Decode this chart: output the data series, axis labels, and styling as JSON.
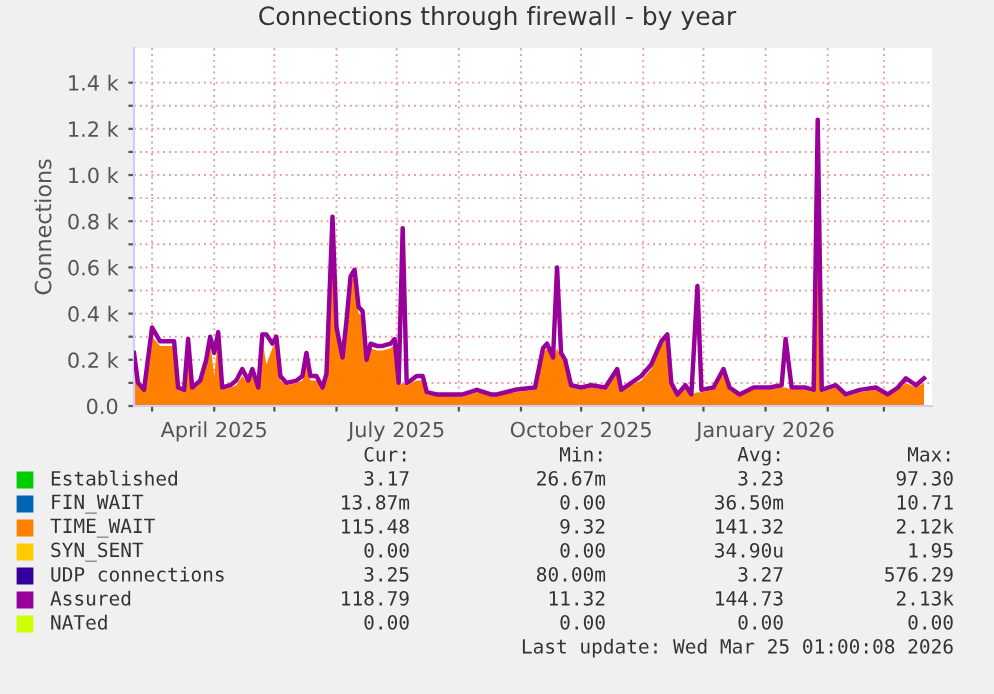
{
  "chart_data": {
    "type": "area",
    "title": "Connections through firewall - by year",
    "ylabel": "Connections",
    "x": [
      "2025-02-20",
      "2025-02-22",
      "2025-02-25",
      "2025-03-01",
      "2025-03-03",
      "2025-03-05",
      "2025-03-08",
      "2025-03-12",
      "2025-03-14",
      "2025-03-17",
      "2025-03-19",
      "2025-03-21",
      "2025-03-25",
      "2025-03-28",
      "2025-03-30",
      "2025-04-01",
      "2025-04-03",
      "2025-04-05",
      "2025-04-09",
      "2025-04-12",
      "2025-04-15",
      "2025-04-18",
      "2025-04-20",
      "2025-04-23",
      "2025-04-25",
      "2025-04-27",
      "2025-04-30",
      "2025-05-02",
      "2025-05-04",
      "2025-05-07",
      "2025-05-12",
      "2025-05-15",
      "2025-05-17",
      "2025-05-19",
      "2025-05-22",
      "2025-05-25",
      "2025-05-27",
      "2025-05-30",
      "2025-06-01",
      "2025-06-04",
      "2025-06-06",
      "2025-06-08",
      "2025-06-10",
      "2025-06-12",
      "2025-06-14",
      "2025-06-16",
      "2025-06-18",
      "2025-06-21",
      "2025-06-24",
      "2025-06-28",
      "2025-06-30",
      "2025-07-02",
      "2025-07-04",
      "2025-07-06",
      "2025-07-08",
      "2025-07-11",
      "2025-07-14",
      "2025-07-16",
      "2025-07-21",
      "2025-07-28",
      "2025-08-03",
      "2025-08-10",
      "2025-08-17",
      "2025-08-20",
      "2025-08-29",
      "2025-09-08",
      "2025-09-12",
      "2025-09-14",
      "2025-09-17",
      "2025-09-19",
      "2025-09-21",
      "2025-09-23",
      "2025-09-26",
      "2025-10-01",
      "2025-10-06",
      "2025-10-13",
      "2025-10-19",
      "2025-10-21",
      "2025-10-26",
      "2025-10-31",
      "2025-11-05",
      "2025-11-10",
      "2025-11-13",
      "2025-11-15",
      "2025-11-18",
      "2025-11-22",
      "2025-11-25",
      "2025-11-28",
      "2025-11-30",
      "2025-12-06",
      "2025-12-11",
      "2025-12-14",
      "2025-12-19",
      "2025-12-26",
      "2026-01-03",
      "2026-01-09",
      "2026-01-11",
      "2026-01-14",
      "2026-01-21",
      "2026-01-25",
      "2026-01-27",
      "2026-01-29",
      "2026-02-05",
      "2026-02-10",
      "2026-02-17",
      "2026-02-25",
      "2026-03-03",
      "2026-03-08",
      "2026-03-12",
      "2026-03-17",
      "2026-03-21"
    ],
    "series": [
      {
        "name": "Established",
        "color": "#00cc00",
        "type": "line",
        "values": [
          null,
          null,
          null,
          null,
          null,
          null,
          null,
          null,
          null,
          null,
          null,
          null,
          null,
          null,
          null,
          null,
          null,
          null,
          null,
          null,
          null,
          null,
          null,
          null,
          null,
          null,
          null,
          null,
          null,
          null,
          null,
          null,
          null,
          null,
          null,
          null,
          null,
          null,
          null,
          null,
          null,
          null,
          null,
          null,
          null,
          null,
          null,
          null,
          null,
          null,
          null,
          null,
          null,
          null,
          null,
          null,
          null,
          null,
          null,
          null,
          null,
          null,
          null,
          null,
          null,
          null,
          null,
          null,
          null,
          null,
          null,
          null,
          null,
          null,
          null,
          null,
          null,
          null,
          null,
          null,
          null,
          null,
          null,
          null,
          null,
          null,
          null,
          null,
          null,
          null,
          null,
          null,
          null,
          null,
          null,
          null,
          null,
          null,
          null,
          null,
          null,
          null,
          null,
          null,
          null,
          null,
          null,
          null,
          null,
          null,
          null
        ]
      },
      {
        "name": "FIN_WAIT",
        "color": "#0066b3",
        "type": "line",
        "values": [
          null,
          null,
          null,
          null,
          null,
          null,
          null,
          null,
          null,
          null,
          null,
          null,
          null,
          null,
          null,
          null,
          null,
          null,
          null,
          null,
          null,
          null,
          null,
          null,
          null,
          null,
          null,
          null,
          null,
          null,
          null,
          null,
          null,
          null,
          null,
          null,
          null,
          null,
          null,
          null,
          null,
          null,
          null,
          null,
          null,
          null,
          null,
          null,
          null,
          null,
          null,
          null,
          null,
          null,
          null,
          null,
          null,
          null,
          null,
          null,
          null,
          null,
          null,
          null,
          null,
          null,
          null,
          null,
          null,
          null,
          null,
          null,
          null,
          null,
          null,
          null,
          null,
          null,
          null,
          null,
          null,
          null,
          null,
          null,
          null,
          null,
          null,
          null,
          null,
          null,
          null,
          null,
          null,
          null,
          null,
          null,
          null,
          null,
          null,
          null,
          null,
          null,
          null,
          null,
          null,
          null,
          null,
          null,
          null,
          null,
          null
        ]
      },
      {
        "name": "TIME_WAIT",
        "color": "#ff8000",
        "values": [
          210,
          90,
          60,
          300,
          280,
          260,
          260,
          260,
          70,
          60,
          260,
          70,
          100,
          180,
          280,
          130,
          300,
          70,
          80,
          90,
          130,
          100,
          130,
          70,
          290,
          180,
          250,
          280,
          110,
          90,
          100,
          110,
          200,
          110,
          110,
          70,
          130,
          800,
          320,
          200,
          350,
          530,
          570,
          400,
          390,
          190,
          250,
          240,
          240,
          250,
          270,
          90,
          100,
          90,
          100,
          110,
          110,
          50,
          50,
          50,
          40,
          60,
          50,
          50,
          60,
          70,
          230,
          250,
          200,
          250,
          210,
          180,
          80,
          70,
          80,
          70,
          150,
          60,
          90,
          110,
          160,
          270,
          300,
          90,
          50,
          80,
          50,
          60,
          60,
          70,
          140,
          70,
          50,
          70,
          70,
          80,
          80,
          70,
          70,
          60,
          1200,
          60,
          80,
          40,
          60,
          70,
          40,
          70,
          100,
          80,
          100
        ]
      },
      {
        "name": "SYN_SENT",
        "color": "#ffcc00",
        "type": "line",
        "values": [
          null,
          null,
          null,
          null,
          null,
          null,
          null,
          null,
          null,
          null,
          null,
          null,
          null,
          null,
          null,
          null,
          null,
          null,
          null,
          null,
          null,
          null,
          null,
          null,
          null,
          null,
          null,
          null,
          null,
          null,
          null,
          null,
          null,
          null,
          null,
          null,
          null,
          null,
          null,
          null,
          null,
          null,
          null,
          null,
          null,
          null,
          null,
          null,
          null,
          null,
          null,
          null,
          null,
          null,
          null,
          null,
          null,
          null,
          null,
          null,
          null,
          null,
          null,
          null,
          null,
          null,
          null,
          null,
          null,
          null,
          null,
          null,
          null,
          null,
          null,
          null,
          null,
          null,
          null,
          null,
          null,
          null,
          null,
          null,
          null,
          null,
          null,
          null,
          null,
          null,
          null,
          null,
          null,
          null,
          null,
          null,
          null,
          null,
          null,
          null,
          null,
          null,
          null,
          null,
          null,
          null,
          null,
          null,
          null,
          null,
          null
        ]
      },
      {
        "name": "UDP connections",
        "color": "#330099",
        "type": "line",
        "values": [
          null,
          null,
          null,
          null,
          null,
          null,
          null,
          null,
          null,
          null,
          null,
          null,
          null,
          null,
          null,
          null,
          null,
          null,
          null,
          null,
          null,
          null,
          null,
          null,
          null,
          null,
          null,
          null,
          null,
          null,
          null,
          null,
          null,
          null,
          null,
          null,
          null,
          null,
          null,
          null,
          null,
          null,
          null,
          null,
          null,
          null,
          null,
          null,
          null,
          null,
          null,
          null,
          null,
          null,
          null,
          null,
          null,
          null,
          null,
          null,
          null,
          null,
          null,
          null,
          null,
          null,
          null,
          null,
          null,
          null,
          null,
          null,
          null,
          null,
          null,
          null,
          null,
          null,
          null,
          null,
          null,
          null,
          null,
          null,
          null,
          null,
          null,
          null,
          null,
          null,
          null,
          null,
          null,
          null,
          null,
          null,
          null,
          null,
          null,
          null,
          null,
          null,
          null,
          null,
          null,
          null,
          null,
          null,
          null,
          null,
          null
        ]
      },
      {
        "name": "Assured",
        "color": "#990099",
        "type": "line",
        "values": [
          230,
          100,
          70,
          340,
          310,
          280,
          280,
          280,
          80,
          70,
          290,
          80,
          110,
          200,
          300,
          230,
          320,
          80,
          90,
          110,
          160,
          110,
          160,
          80,
          310,
          310,
          270,
          300,
          130,
          100,
          110,
          130,
          230,
          130,
          130,
          80,
          140,
          820,
          340,
          210,
          370,
          560,
          590,
          430,
          410,
          200,
          270,
          260,
          260,
          270,
          290,
          100,
          770,
          100,
          110,
          130,
          130,
          60,
          50,
          50,
          50,
          70,
          50,
          50,
          70,
          80,
          250,
          270,
          210,
          600,
          230,
          200,
          90,
          80,
          90,
          80,
          160,
          70,
          100,
          130,
          180,
          280,
          310,
          100,
          50,
          90,
          50,
          520,
          70,
          80,
          160,
          80,
          50,
          80,
          80,
          90,
          290,
          80,
          80,
          70,
          1240,
          70,
          90,
          50,
          70,
          80,
          50,
          80,
          120,
          90,
          120
        ]
      },
      {
        "name": "NATed",
        "color": "#ccff00",
        "type": "line",
        "values": [
          null,
          null,
          null,
          null,
          null,
          null,
          null,
          null,
          null,
          null,
          null,
          null,
          null,
          null,
          null,
          null,
          null,
          null,
          null,
          null,
          null,
          null,
          null,
          null,
          null,
          null,
          null,
          null,
          null,
          null,
          null,
          null,
          null,
          null,
          null,
          null,
          null,
          null,
          null,
          null,
          null,
          null,
          null,
          null,
          null,
          null,
          null,
          null,
          null,
          null,
          null,
          null,
          null,
          null,
          null,
          null,
          null,
          null,
          null,
          null,
          null,
          null,
          null,
          null,
          null,
          null,
          null,
          null,
          null,
          null,
          null,
          null,
          null,
          null,
          null,
          null,
          null,
          null,
          null,
          null,
          null,
          null,
          null,
          null,
          null,
          null,
          null,
          null,
          null,
          null,
          null,
          null,
          null,
          null,
          null,
          null,
          null,
          null,
          null,
          null,
          null,
          null,
          null,
          null,
          null,
          null,
          null,
          null,
          null,
          null,
          null
        ]
      }
    ],
    "xlim": [
      "2025-02-20",
      "2026-03-25"
    ],
    "xticks": [
      {
        "value": "2025-03-01",
        "label": null
      },
      {
        "value": "2025-04-01",
        "label": "April 2025"
      },
      {
        "value": "2025-05-01",
        "label": null
      },
      {
        "value": "2025-06-01",
        "label": null
      },
      {
        "value": "2025-07-01",
        "label": "July 2025"
      },
      {
        "value": "2025-08-01",
        "label": null
      },
      {
        "value": "2025-09-01",
        "label": null
      },
      {
        "value": "2025-10-01",
        "label": "October 2025"
      },
      {
        "value": "2025-11-01",
        "label": null
      },
      {
        "value": "2025-12-01",
        "label": null
      },
      {
        "value": "2026-01-01",
        "label": "January 2026"
      },
      {
        "value": "2026-02-01",
        "label": null
      },
      {
        "value": "2026-03-01",
        "label": null
      }
    ],
    "ylim": [
      0,
      1550
    ],
    "yticks": [
      {
        "value": 0,
        "label": "0.0"
      },
      {
        "value": 100,
        "label": null
      },
      {
        "value": 200,
        "label": "0.2 k"
      },
      {
        "value": 300,
        "label": null
      },
      {
        "value": 400,
        "label": "0.4 k"
      },
      {
        "value": 500,
        "label": null
      },
      {
        "value": 600,
        "label": "0.6 k"
      },
      {
        "value": 700,
        "label": null
      },
      {
        "value": 800,
        "label": "0.8 k"
      },
      {
        "value": 900,
        "label": null
      },
      {
        "value": 1000,
        "label": "1.0 k"
      },
      {
        "value": 1100,
        "label": null
      },
      {
        "value": 1200,
        "label": "1.2 k"
      },
      {
        "value": 1300,
        "label": null
      },
      {
        "value": 1400,
        "label": "1.4 k"
      }
    ],
    "grid": true,
    "legend": "bottom",
    "annotations": [
      "Cur:",
      "Min:",
      "Avg:",
      "Max:",
      "3.17",
      "26.67m",
      "3.23",
      "97.30",
      "13.87m",
      "0.00",
      "36.50m",
      "10.71",
      "115.48",
      "9.32",
      "141.32",
      "2.12k",
      "0.00",
      "0.00",
      "34.90u",
      "1.95",
      "3.25",
      "80.00m",
      "3.27",
      "576.29",
      "118.79",
      "11.32",
      "144.73",
      "2.13k",
      "0.00",
      "0.00",
      "0.00",
      "0.00",
      "Last update: Wed Mar 25 01:00:08 2026"
    ]
  }
}
